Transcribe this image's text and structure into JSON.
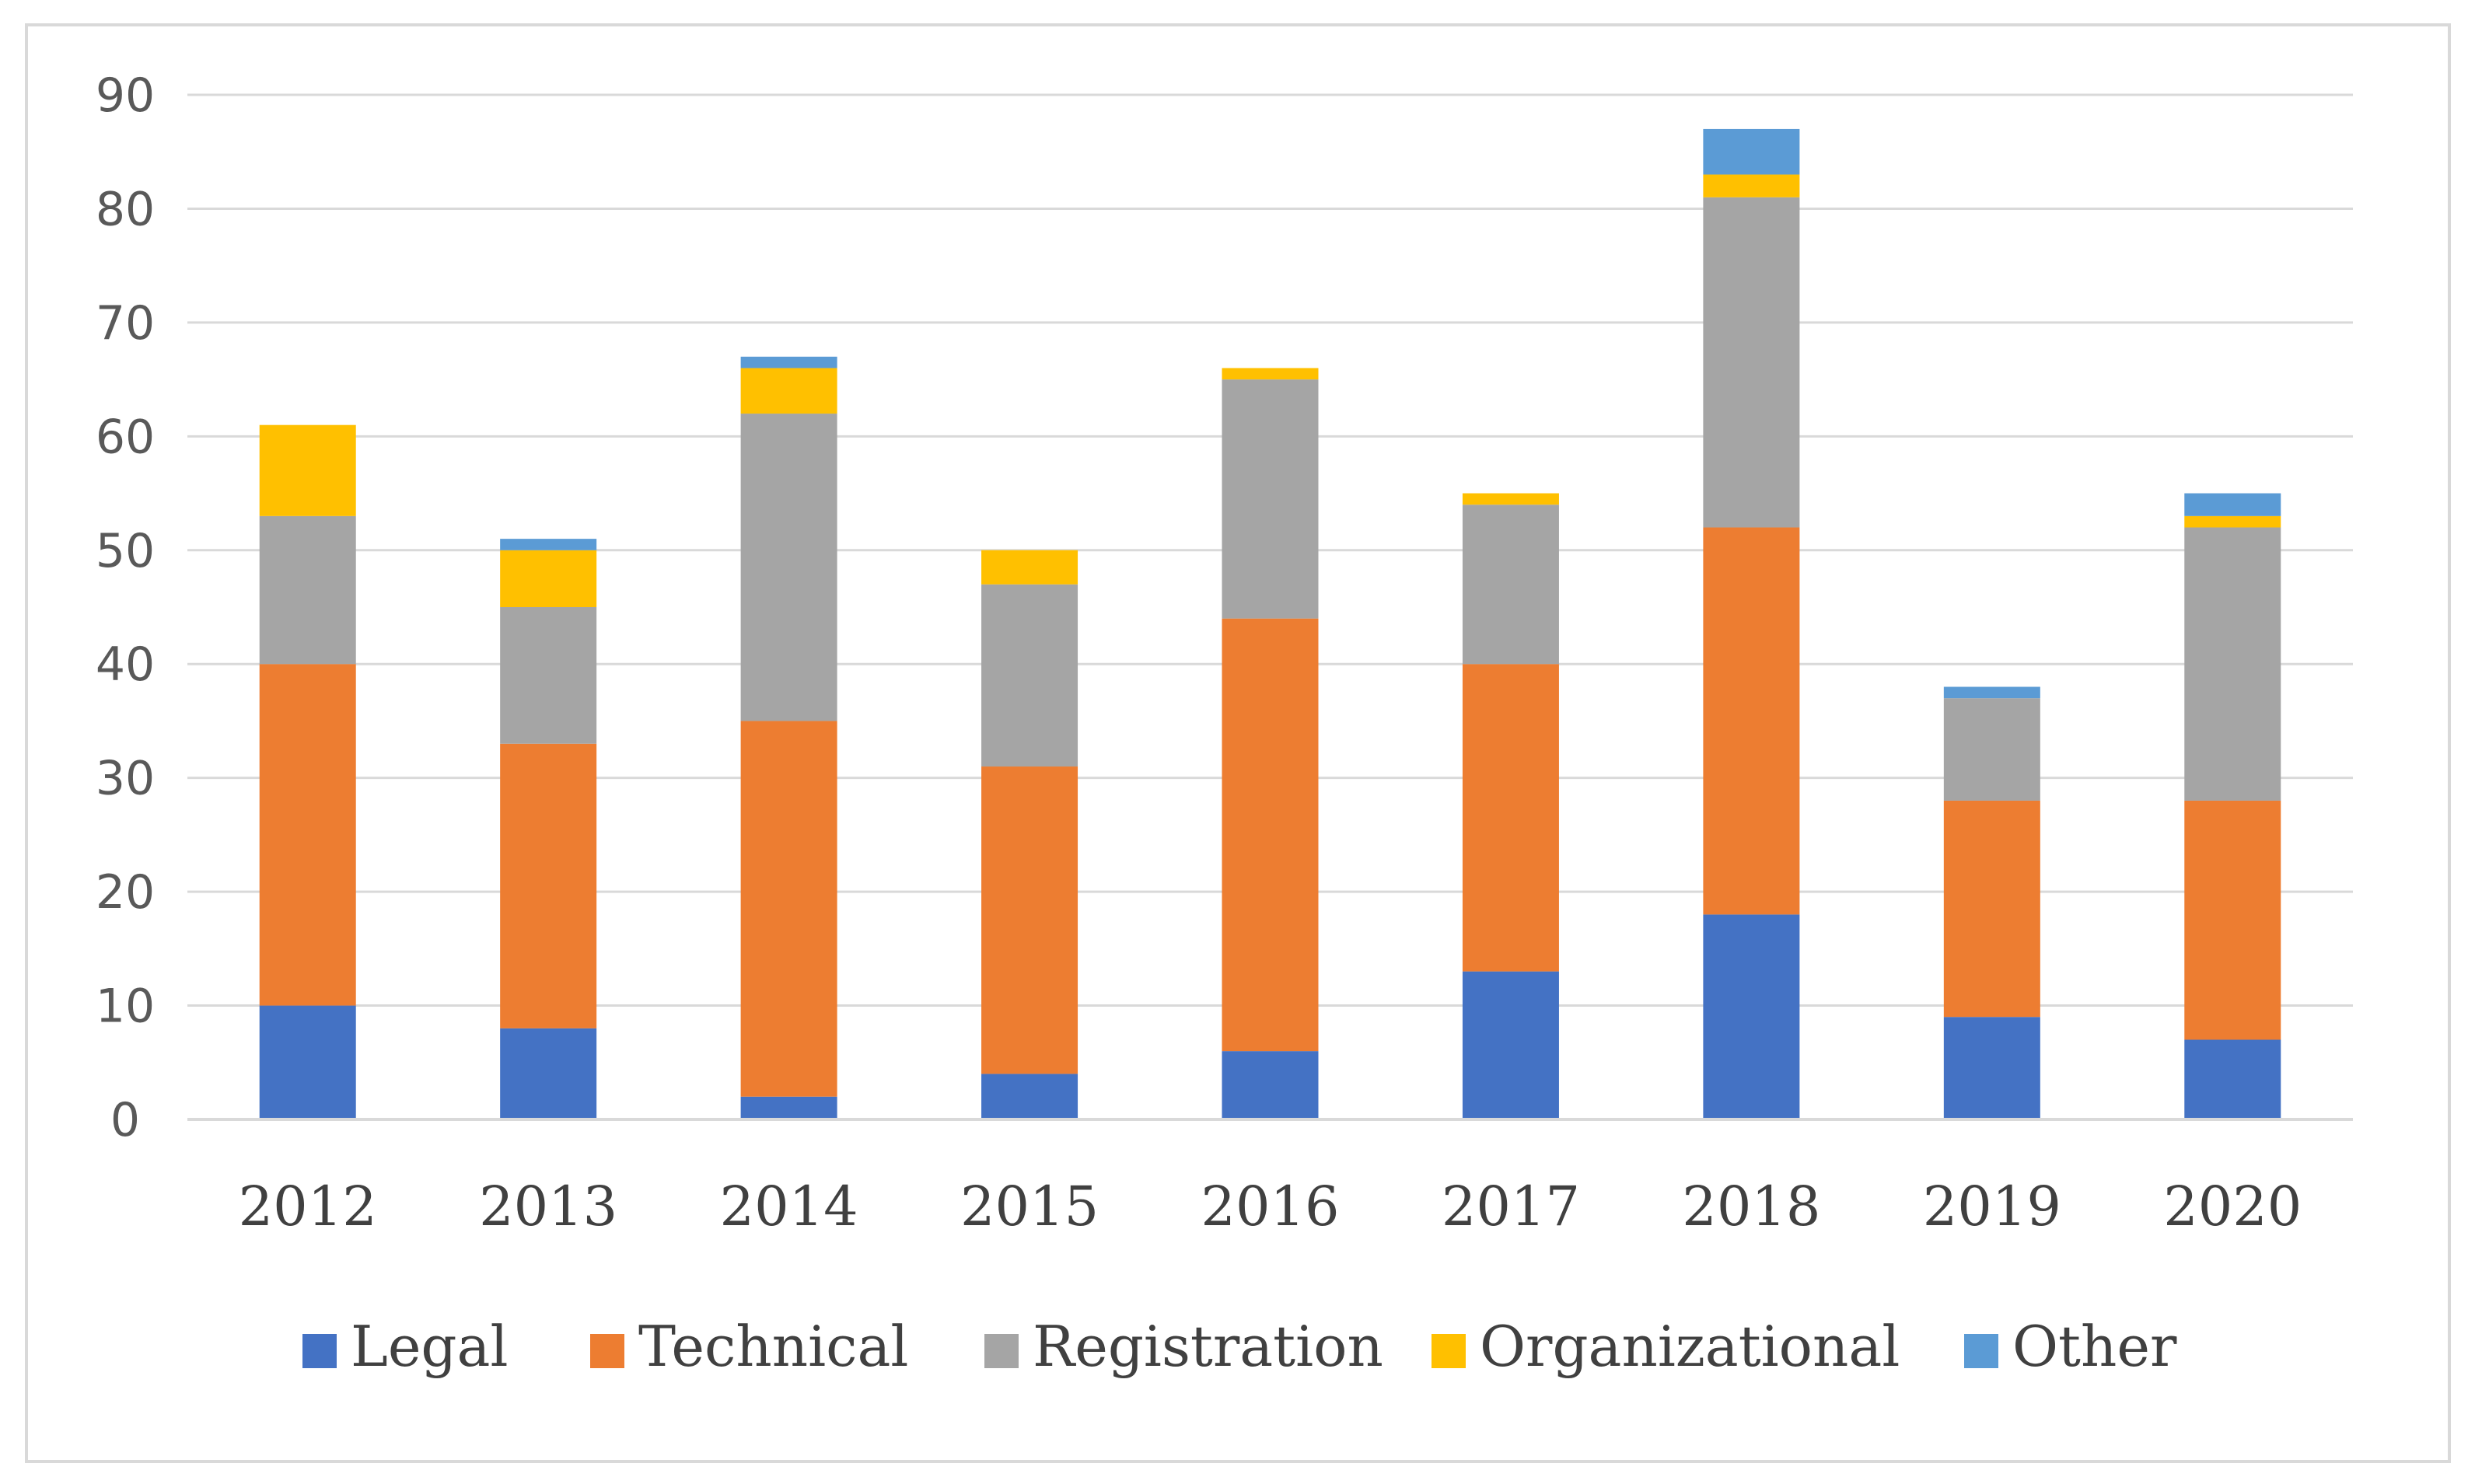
{
  "chart_data": {
    "type": "bar",
    "stacked": true,
    "categories": [
      "2012",
      "2013",
      "2014",
      "2015",
      "2016",
      "2017",
      "2018",
      "2019",
      "2020"
    ],
    "series": [
      {
        "name": "Legal",
        "color": "#4472c4",
        "values": [
          10,
          8,
          2,
          4,
          6,
          13,
          18,
          9,
          7
        ]
      },
      {
        "name": "Technical",
        "color": "#ed7d31",
        "values": [
          30,
          25,
          33,
          27,
          38,
          27,
          34,
          19,
          21
        ]
      },
      {
        "name": "Registration",
        "color": "#a5a5a5",
        "values": [
          13,
          12,
          27,
          16,
          21,
          14,
          29,
          9,
          24
        ]
      },
      {
        "name": "Organizational",
        "color": "#ffc000",
        "values": [
          8,
          5,
          4,
          3,
          1,
          1,
          2,
          0,
          1
        ]
      },
      {
        "name": "Other",
        "color": "#5b9bd5",
        "values": [
          0,
          1,
          1,
          0,
          0,
          0,
          4,
          1,
          2
        ]
      }
    ],
    "yticks": [
      "0",
      "10",
      "20",
      "30",
      "40",
      "50",
      "60",
      "70",
      "80",
      "90"
    ],
    "ylim": [
      0,
      90
    ],
    "grid": true,
    "legend_position": "bottom"
  }
}
